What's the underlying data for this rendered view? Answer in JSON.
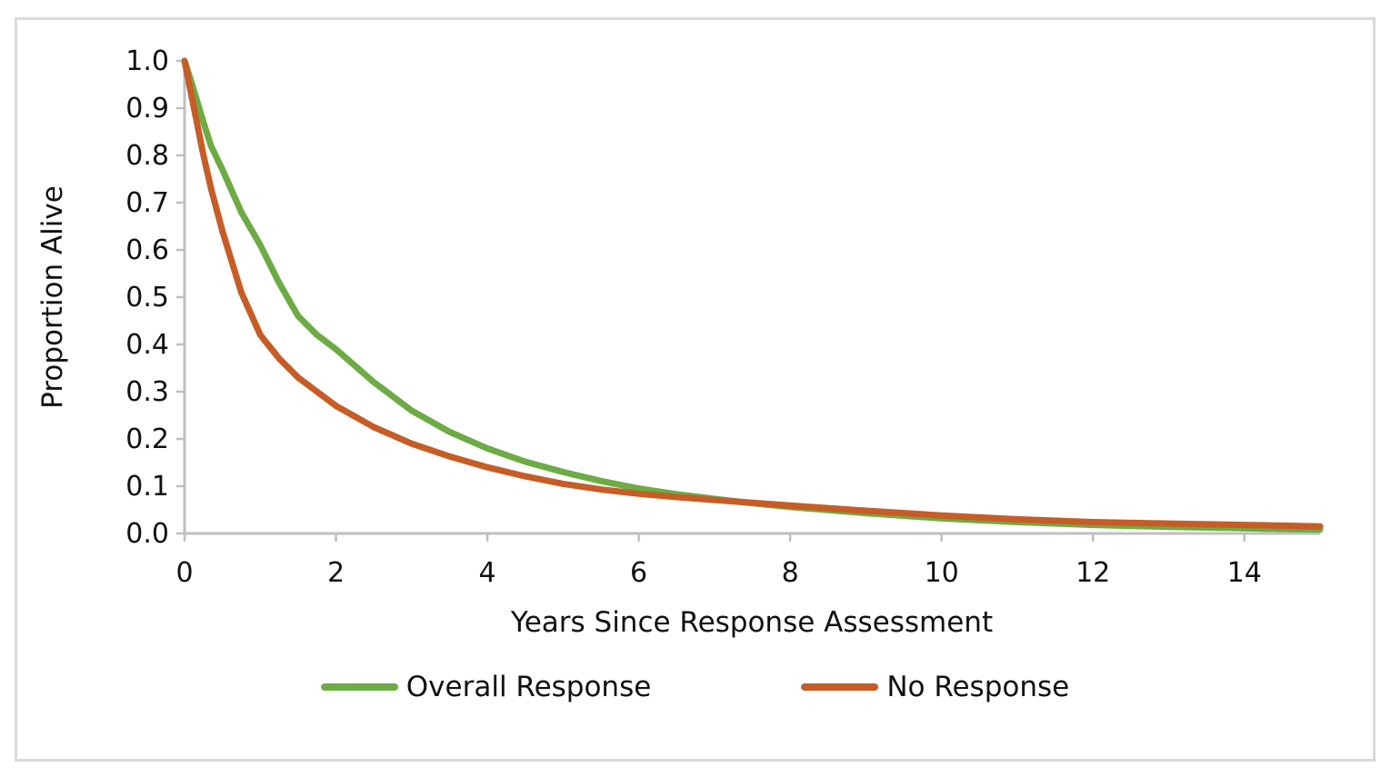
{
  "chart_data": {
    "type": "line",
    "title": "",
    "xlabel": "Years Since Response Assessment",
    "ylabel": "Proportion Alive",
    "xlim": [
      0,
      15
    ],
    "ylim": [
      0.0,
      1.0
    ],
    "x_ticks": [
      0,
      2,
      4,
      6,
      8,
      10,
      12,
      14
    ],
    "y_tick_labels": [
      "0.0",
      "0.1",
      "0.2",
      "0.3",
      "0.4",
      "0.5",
      "0.6",
      "0.7",
      "0.8",
      "0.9",
      "1.0"
    ],
    "grid": false,
    "legend_position": "bottom-center",
    "x": [
      0,
      0.05,
      0.1,
      0.25,
      0.35,
      0.5,
      0.75,
      1,
      1.25,
      1.5,
      1.75,
      2,
      2.5,
      3,
      3.5,
      4,
      4.5,
      5,
      5.5,
      6,
      6.5,
      7,
      7.5,
      8,
      9,
      10,
      11,
      12,
      13,
      14,
      15
    ],
    "series": [
      {
        "name": "Overall Response",
        "color": "#6DAB45",
        "values": [
          1.0,
          0.975,
          0.95,
          0.87,
          0.82,
          0.77,
          0.68,
          0.61,
          0.53,
          0.46,
          0.42,
          0.39,
          0.32,
          0.26,
          0.215,
          0.18,
          0.152,
          0.13,
          0.111,
          0.095,
          0.083,
          0.073,
          0.064,
          0.056,
          0.043,
          0.032,
          0.024,
          0.018,
          0.014,
          0.011,
          0.008
        ]
      },
      {
        "name": "No Response",
        "color": "#C65C26",
        "values": [
          1.0,
          0.96,
          0.92,
          0.8,
          0.73,
          0.64,
          0.51,
          0.42,
          0.37,
          0.33,
          0.3,
          0.27,
          0.225,
          0.19,
          0.163,
          0.14,
          0.121,
          0.105,
          0.093,
          0.084,
          0.077,
          0.071,
          0.065,
          0.059,
          0.048,
          0.038,
          0.03,
          0.024,
          0.021,
          0.018,
          0.015
        ]
      }
    ]
  },
  "styles": {
    "axis_line_color": "#BFBFBF",
    "text_color": "#111111",
    "frame_border_color": "#DADADA",
    "background": "#FFFFFF",
    "curve_stroke_width": 7
  }
}
